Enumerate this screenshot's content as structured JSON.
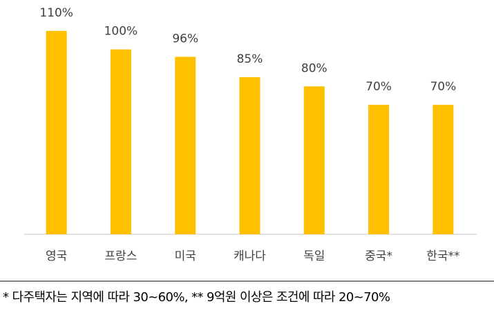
{
  "chart_data": {
    "type": "bar",
    "categories": [
      "영국",
      "프랑스",
      "미국",
      "캐나다",
      "독일",
      "중국*",
      "한국**"
    ],
    "values": [
      110,
      100,
      96,
      85,
      80,
      70,
      70
    ],
    "value_labels": [
      "110%",
      "100%",
      "96%",
      "85%",
      "80%",
      "70%",
      "70%"
    ],
    "color": "#ffc000",
    "ylim": [
      0,
      120
    ],
    "footnote": "* 다주택자는 지역에 따라 30~60%, ** 9억원 이상은 조건에 따라 20~70%"
  }
}
